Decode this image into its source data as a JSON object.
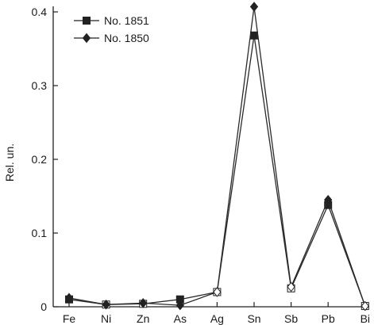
{
  "chart_data": {
    "type": "line",
    "categories": [
      "Fe",
      "Ni",
      "Zn",
      "As",
      "Ag",
      "Sn",
      "Sb",
      "Pb",
      "Bi"
    ],
    "ylabel": "Rel. un.",
    "xlabel": "",
    "ylim": [
      0,
      0.4
    ],
    "yticks": [
      "0",
      "0.1",
      "0.2",
      "0.3",
      "0.4"
    ],
    "grid": false,
    "legend_position": "top-left",
    "series": [
      {
        "name": "No. 1851",
        "marker": "square",
        "values": [
          0.01,
          0.003,
          0.004,
          0.01,
          0.02,
          0.368,
          0.025,
          0.138,
          0.001
        ]
      },
      {
        "name": "No. 1850",
        "marker": "diamond",
        "values": [
          0.012,
          0.003,
          0.005,
          0.002,
          0.02,
          0.407,
          0.027,
          0.145,
          0.001
        ]
      }
    ]
  }
}
